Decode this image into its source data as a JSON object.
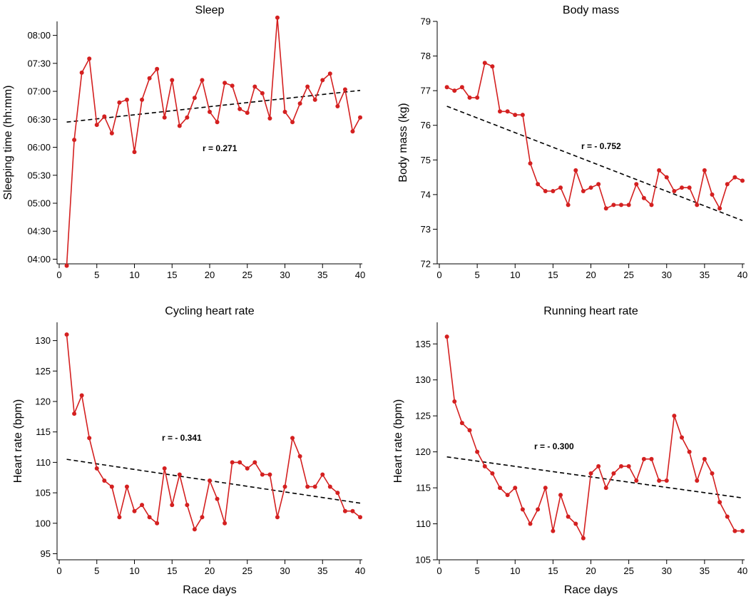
{
  "colors": {
    "series": "#d42020",
    "trend": "#000000",
    "axis": "#000000"
  },
  "chart_data": [
    {
      "type": "line",
      "title": "Sleep",
      "xlabel": "",
      "ylabel": "Sleeping time (hh:mm)",
      "xlim": [
        0,
        40
      ],
      "ylim": [
        235,
        495
      ],
      "xticks": [
        0,
        5,
        10,
        15,
        20,
        25,
        30,
        35,
        40
      ],
      "yticks": [
        240,
        270,
        300,
        330,
        360,
        390,
        420,
        450,
        480
      ],
      "ytick_labels": [
        "04:00",
        "04:30",
        "05:00",
        "05:30",
        "06:00",
        "06:30",
        "07:00",
        "07:30",
        "08:00"
      ],
      "x": [
        1,
        2,
        3,
        4,
        5,
        6,
        7,
        8,
        9,
        10,
        11,
        12,
        13,
        14,
        15,
        16,
        17,
        18,
        19,
        20,
        21,
        22,
        23,
        24,
        25,
        26,
        27,
        28,
        29,
        30,
        31,
        32,
        33,
        34,
        35,
        36,
        37,
        38,
        39,
        40
      ],
      "values": [
        233,
        368,
        440,
        455,
        384,
        393,
        375,
        408,
        411,
        355,
        411,
        434,
        444,
        392,
        432,
        383,
        392,
        413,
        432,
        398,
        387,
        429,
        426,
        401,
        397,
        425,
        418,
        391,
        499,
        398,
        387,
        407,
        425,
        411,
        432,
        439,
        404,
        422,
        377,
        392
      ],
      "trend": [
        387,
        421
      ],
      "annotation": "r = 0.271"
    },
    {
      "type": "line",
      "title": "Body mass",
      "xlabel": "",
      "ylabel": "Body mass (kg)",
      "xlim": [
        0,
        40
      ],
      "ylim": [
        72,
        79
      ],
      "xticks": [
        0,
        5,
        10,
        15,
        20,
        25,
        30,
        35,
        40
      ],
      "yticks": [
        72,
        73,
        74,
        75,
        76,
        77,
        78,
        79
      ],
      "ytick_labels": [
        "72",
        "73",
        "74",
        "75",
        "76",
        "77",
        "78",
        "79"
      ],
      "x": [
        1,
        2,
        3,
        4,
        5,
        6,
        7,
        8,
        9,
        10,
        11,
        12,
        13,
        14,
        15,
        16,
        17,
        18,
        19,
        20,
        21,
        22,
        23,
        24,
        25,
        26,
        27,
        28,
        29,
        30,
        31,
        32,
        33,
        34,
        35,
        36,
        37,
        38,
        39,
        40
      ],
      "values": [
        77.1,
        77.0,
        77.1,
        76.8,
        76.8,
        77.8,
        77.7,
        76.4,
        76.4,
        76.3,
        76.3,
        74.9,
        74.3,
        74.1,
        74.1,
        74.2,
        73.7,
        74.7,
        74.1,
        74.2,
        74.3,
        73.6,
        73.7,
        73.7,
        73.7,
        74.3,
        73.9,
        73.7,
        74.7,
        74.5,
        74.1,
        74.2,
        74.2,
        73.7,
        74.7,
        74.0,
        73.6,
        74.3,
        74.5,
        74.4
      ],
      "trend": [
        76.55,
        73.25
      ],
      "annotation": "r = - 0.752"
    },
    {
      "type": "line",
      "title": "Cycling heart rate",
      "xlabel": "Race days",
      "ylabel": "Heart rate (bpm)",
      "xlim": [
        0,
        40
      ],
      "ylim": [
        94,
        133
      ],
      "xticks": [
        0,
        5,
        10,
        15,
        20,
        25,
        30,
        35,
        40
      ],
      "yticks": [
        95,
        100,
        105,
        110,
        115,
        120,
        125,
        130
      ],
      "ytick_labels": [
        "95",
        "100",
        "105",
        "110",
        "115",
        "120",
        "125",
        "130"
      ],
      "x": [
        1,
        2,
        3,
        4,
        5,
        6,
        7,
        8,
        9,
        10,
        11,
        12,
        13,
        14,
        15,
        16,
        17,
        18,
        19,
        20,
        21,
        22,
        23,
        24,
        25,
        26,
        27,
        28,
        29,
        30,
        31,
        32,
        33,
        34,
        35,
        36,
        37,
        38,
        39,
        40
      ],
      "values": [
        131,
        118,
        121,
        114,
        109,
        107,
        106,
        101,
        106,
        102,
        103,
        101,
        100,
        109,
        103,
        108,
        103,
        99,
        101,
        107,
        104,
        100,
        110,
        110,
        109,
        110,
        108,
        108,
        101,
        106,
        114,
        111,
        106,
        106,
        108,
        106,
        105,
        102,
        102,
        101
      ],
      "trend": [
        110.5,
        103.3
      ],
      "annotation": "r = - 0.341"
    },
    {
      "type": "line",
      "title": "Running heart rate",
      "xlabel": "Race days",
      "ylabel": "Heart rate (bpm)",
      "xlim": [
        0,
        40
      ],
      "ylim": [
        105,
        138
      ],
      "xticks": [
        0,
        5,
        10,
        15,
        20,
        25,
        30,
        35,
        40
      ],
      "yticks": [
        105,
        110,
        115,
        120,
        125,
        130,
        135
      ],
      "ytick_labels": [
        "105",
        "110",
        "115",
        "120",
        "125",
        "130",
        "135"
      ],
      "x": [
        1,
        2,
        3,
        4,
        5,
        6,
        7,
        8,
        9,
        10,
        11,
        12,
        13,
        14,
        15,
        16,
        17,
        18,
        19,
        20,
        21,
        22,
        23,
        24,
        25,
        26,
        27,
        28,
        29,
        30,
        31,
        32,
        33,
        34,
        35,
        36,
        37,
        38,
        39,
        40
      ],
      "values": [
        136,
        127,
        124,
        123,
        120,
        118,
        117,
        115,
        114,
        115,
        112,
        110,
        112,
        115,
        109,
        114,
        111,
        110,
        108,
        117,
        118,
        115,
        117,
        118,
        118,
        116,
        119,
        119,
        116,
        116,
        125,
        122,
        120,
        116,
        119,
        117,
        113,
        111,
        109,
        109
      ],
      "trend": [
        119.3,
        113.6
      ],
      "annotation": "r = - 0.300"
    }
  ]
}
